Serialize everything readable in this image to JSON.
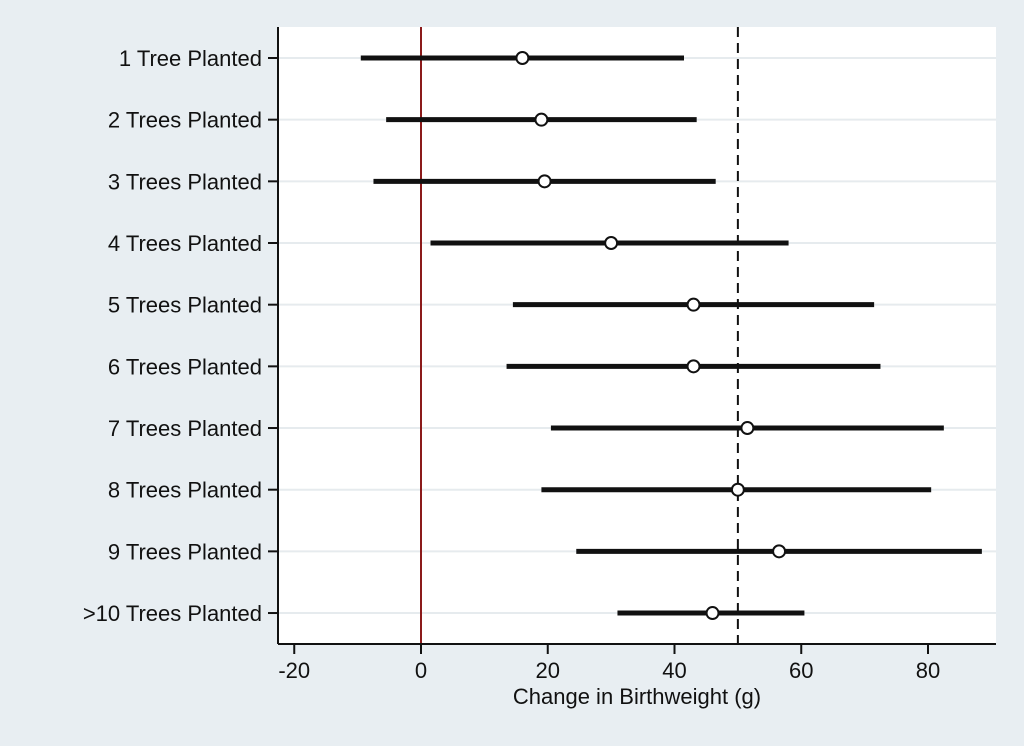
{
  "chart_data": {
    "type": "scatter",
    "subtype": "coefficient-plot-with-confidence-intervals",
    "title": "",
    "xlabel": "Change in Birthweight (g)",
    "ylabel": "",
    "xlim": [
      -25,
      90
    ],
    "xticks": [
      -20,
      0,
      20,
      40,
      60,
      80
    ],
    "xtick_labels": [
      "-20",
      "0",
      "20",
      "40",
      "60",
      "80"
    ],
    "grid": "horizontal",
    "legend": "none",
    "reference_lines": [
      {
        "value": 0,
        "style": "solid",
        "color": "#8b1a1a"
      },
      {
        "value": 50,
        "style": "dashed",
        "color": "#111111"
      }
    ],
    "categories": [
      "1 Tree Planted",
      "2 Trees Planted",
      "3 Trees Planted",
      "4 Trees Planted",
      "5 Trees Planted",
      "6 Trees Planted",
      "7 Trees Planted",
      "8 Trees Planted",
      "9 Trees Planted",
      ">10 Trees Planted"
    ],
    "estimates": [
      16,
      19,
      19.5,
      30,
      43,
      43,
      51.5,
      50,
      56.5,
      46
    ],
    "ci_lower": [
      -9.5,
      -5.5,
      -7.5,
      1.5,
      14.5,
      13.5,
      20.5,
      19,
      24.5,
      31
    ],
    "ci_upper": [
      41.5,
      43.5,
      46.5,
      58,
      71.5,
      72.5,
      82.5,
      80.5,
      88.5,
      60.5
    ]
  },
  "colors": {
    "page_background": "#e8eef2",
    "plot_background": "#ffffff",
    "gridline": "#e6ebee",
    "bar": "#111111",
    "marker_fill": "#ffffff",
    "marker_stroke": "#111111",
    "zero_line": "#8b1a1a"
  }
}
